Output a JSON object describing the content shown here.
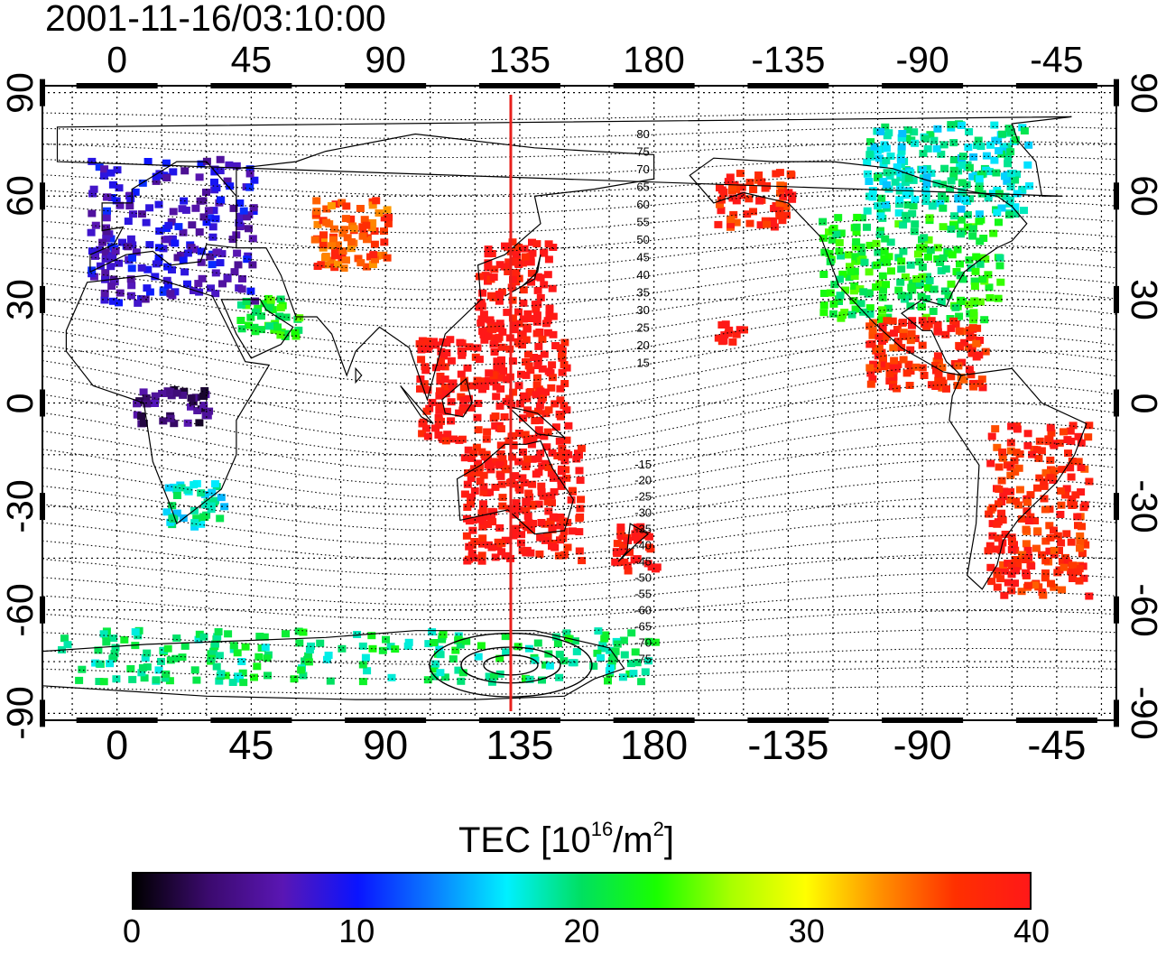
{
  "title": "2001-11-16/03:10:00",
  "axes": {
    "top_lon_ticks": [
      "0",
      "45",
      "90",
      "135",
      "180",
      "-135",
      "-90",
      "-45"
    ],
    "bottom_lon_ticks": [
      "0",
      "45",
      "90",
      "135",
      "180",
      "-135",
      "-90",
      "-45"
    ],
    "lat_ticks": [
      "90",
      "60",
      "30",
      "0",
      "-30",
      "-60",
      "-90"
    ],
    "lon_range": [
      -25,
      335
    ],
    "lat_range": [
      -92,
      92
    ],
    "grid": true,
    "grid_style": "dotted"
  },
  "overlay": {
    "reference_meridian_lon": 132,
    "reference_meridian_color": "#e8201c",
    "contour_labels": [
      "80",
      "75",
      "70",
      "65",
      "60",
      "55",
      "50",
      "45",
      "40",
      "35",
      "30",
      "25",
      "20",
      "15",
      "-15",
      "-20",
      "-25",
      "-30",
      "-35",
      "-40",
      "-45",
      "-50",
      "-55",
      "-60",
      "-65",
      "-70",
      "-75"
    ]
  },
  "colorbar": {
    "label_main": "TEC  [10",
    "label_exp1": "16",
    "label_mid": "/m",
    "label_exp2": "2",
    "label_end": "]",
    "min": 0,
    "max": 40,
    "ticks": [
      "0",
      "10",
      "20",
      "30",
      "40"
    ],
    "colormap": [
      "#000000",
      "#3b0a6e",
      "#5a16b4",
      "#0a14ff",
      "#0a7cff",
      "#00f0ff",
      "#00e060",
      "#19ff00",
      "#a8ff00",
      "#ffff00",
      "#ff9000",
      "#ff3000",
      "#ff1818"
    ]
  },
  "observations": {
    "europe": {
      "lon_range": [
        -10,
        45
      ],
      "lat_range": [
        30,
        72
      ],
      "tec": 8
    },
    "north_africa_arabia": {
      "lon_range": [
        40,
        60
      ],
      "lat_range": [
        20,
        32
      ],
      "tec": 22
    },
    "central_africa": {
      "lon_range": [
        5,
        30
      ],
      "lat_range": [
        -5,
        5
      ],
      "tec": 4
    },
    "southern_africa": {
      "lon_range": [
        15,
        35
      ],
      "lat_range": [
        -35,
        -22
      ],
      "tec": 18
    },
    "central_asia": {
      "lon_range": [
        65,
        90
      ],
      "lat_range": [
        40,
        60
      ],
      "tec": 36
    },
    "east_asia": {
      "lon_range": [
        120,
        145
      ],
      "lat_range": [
        20,
        48
      ],
      "tec": 40
    },
    "southeast_asia": {
      "lon_range": [
        100,
        150
      ],
      "lat_range": [
        -10,
        20
      ],
      "tec": 40
    },
    "australia": {
      "lon_range": [
        115,
        155
      ],
      "lat_range": [
        -45,
        -10
      ],
      "tec": 40
    },
    "new_zealand": {
      "lon_range": [
        165,
        180
      ],
      "lat_range": [
        -48,
        -34
      ],
      "tec": 40
    },
    "alaska": {
      "lon_range": [
        -160,
        -135
      ],
      "lat_range": [
        52,
        68
      ],
      "tec": 38
    },
    "north_america": {
      "lon_range": [
        -125,
        -65
      ],
      "lat_range": [
        25,
        55
      ],
      "tec": 22
    },
    "canada_arctic": {
      "lon_range": [
        -110,
        -55
      ],
      "lat_range": [
        55,
        82
      ],
      "tec": 18
    },
    "central_america": {
      "lon_range": [
        -110,
        -70
      ],
      "lat_range": [
        5,
        25
      ],
      "tec": 38
    },
    "hawaii": {
      "lon_range": [
        -160,
        -150
      ],
      "lat_range": [
        18,
        24
      ],
      "tec": 40
    },
    "south_america": {
      "lon_range": [
        -70,
        -35
      ],
      "lat_range": [
        -55,
        -5
      ],
      "tec": 38
    },
    "antarctica": {
      "lon_range": [
        -20,
        180
      ],
      "lat_range": [
        -80,
        -65
      ],
      "tec": 20
    }
  }
}
